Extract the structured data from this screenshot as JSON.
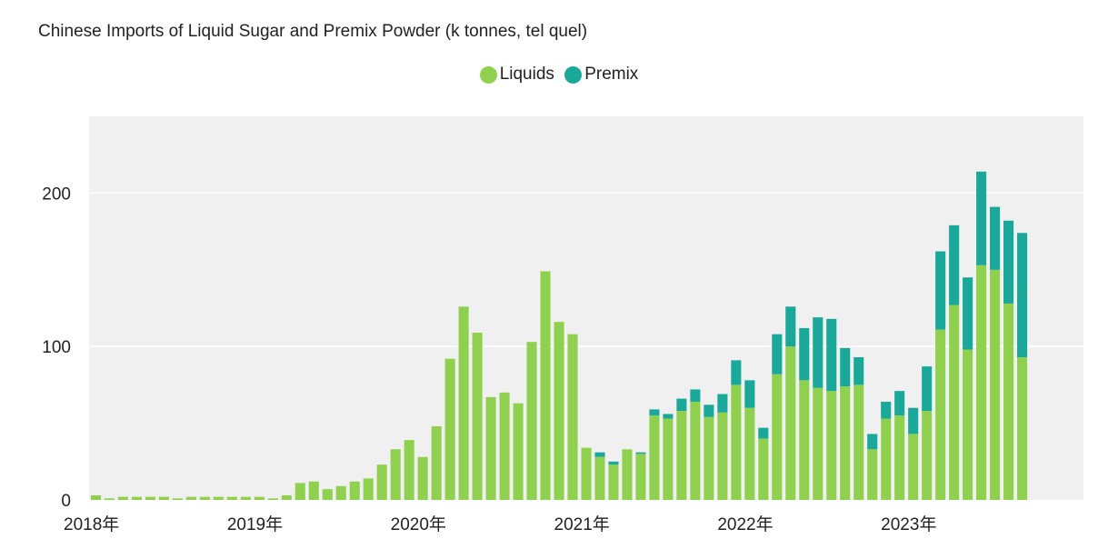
{
  "chart_data": {
    "type": "bar",
    "stacked": true,
    "title": "Chinese Imports of Liquid Sugar and Premix Powder (k tonnes, tel quel)",
    "xlabel": "",
    "ylabel": "",
    "ylim": [
      0,
      250
    ],
    "y_ticks": [
      0,
      100,
      200
    ],
    "x_tick_labels": [
      "2018年",
      "2019年",
      "2020年",
      "2021年",
      "2022年",
      "2023年"
    ],
    "grid": true,
    "legend_position": "top-center",
    "categories": [
      "2018-01",
      "2018-02",
      "2018-03",
      "2018-04",
      "2018-05",
      "2018-06",
      "2018-07",
      "2018-08",
      "2018-09",
      "2018-10",
      "2018-11",
      "2018-12",
      "2019-01",
      "2019-02",
      "2019-03",
      "2019-04",
      "2019-05",
      "2019-06",
      "2019-07",
      "2019-08",
      "2019-09",
      "2019-10",
      "2019-11",
      "2019-12",
      "2020-01",
      "2020-02",
      "2020-03",
      "2020-04",
      "2020-05",
      "2020-06",
      "2020-07",
      "2020-08",
      "2020-09",
      "2020-10",
      "2020-11",
      "2020-12",
      "2021-01",
      "2021-02",
      "2021-03",
      "2021-04",
      "2021-05",
      "2021-06",
      "2021-07",
      "2021-08",
      "2021-09",
      "2021-10",
      "2021-11",
      "2021-12",
      "2022-01",
      "2022-02",
      "2022-03",
      "2022-04",
      "2022-05",
      "2022-06",
      "2022-07",
      "2022-08",
      "2022-09",
      "2022-10",
      "2022-11",
      "2022-12",
      "2023-01",
      "2023-02",
      "2023-03",
      "2023-04",
      "2023-05",
      "2023-06",
      "2023-07",
      "2023-08",
      "2023-09",
      "2023-10",
      "2023-11",
      "2023-12",
      "2024-01"
    ],
    "series": [
      {
        "name": "Liquids",
        "color": "#8fd14f",
        "values": [
          3,
          1,
          2,
          2,
          2,
          2,
          1,
          2,
          2,
          2,
          2,
          2,
          2,
          1,
          3,
          11,
          12,
          7,
          9,
          12,
          14,
          23,
          33,
          39,
          28,
          48,
          92,
          126,
          109,
          67,
          70,
          63,
          103,
          149,
          116,
          108,
          34,
          28,
          23,
          33,
          30,
          55,
          53,
          58,
          64,
          54,
          57,
          75,
          60,
          40,
          82,
          100,
          78,
          73,
          71,
          74,
          75,
          33,
          53,
          55,
          43,
          58,
          111,
          127,
          98,
          153,
          150,
          128,
          93,
          0,
          0,
          0,
          0
        ]
      },
      {
        "name": "Premix",
        "color": "#1aa89a",
        "values": [
          0,
          0,
          0,
          0,
          0,
          0,
          0,
          0,
          0,
          0,
          0,
          0,
          0,
          0,
          0,
          0,
          0,
          0,
          0,
          0,
          0,
          0,
          0,
          0,
          0,
          0,
          0,
          0,
          0,
          0,
          0,
          0,
          0,
          0,
          0,
          0,
          0,
          3,
          2,
          0,
          1,
          4,
          3,
          8,
          8,
          8,
          12,
          16,
          18,
          7,
          26,
          26,
          34,
          46,
          47,
          25,
          18,
          10,
          11,
          16,
          17,
          29,
          51,
          52,
          47,
          61,
          41,
          54,
          81,
          0,
          0,
          0,
          0
        ]
      }
    ]
  }
}
